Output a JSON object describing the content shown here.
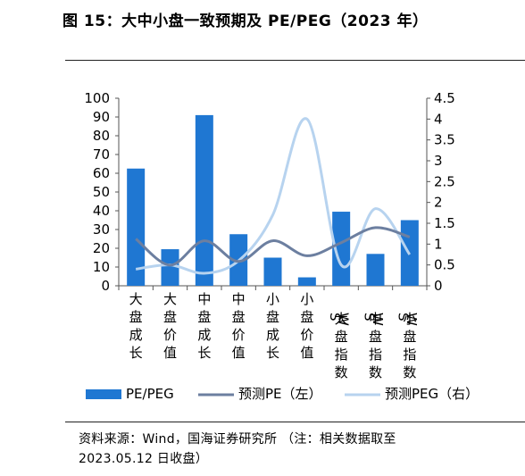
{
  "title": "图 15：大中小盘一致预期及 PE/PEG（2023 年）",
  "source_line1": "资料来源：Wind，国海证券研究所 （注：相关数据取至",
  "source_line2": "2023.05.12 日收盘）",
  "colors": {
    "bar": "#1f77d2",
    "pe_line": "#6c7fa0",
    "peg_line": "#b7d3ef"
  },
  "chart_data": {
    "type": "bar",
    "categories": [
      "大盘成长",
      "大盘价值",
      "中盘成长",
      "中盘价值",
      "小盘成长",
      "小盘价值",
      "SW大盘指数",
      "SW中盘指数",
      "SW小盘指数"
    ],
    "series": [
      {
        "name": "PE/PEG",
        "type": "bar",
        "axis": "left",
        "values": [
          62.5,
          19.5,
          91,
          27.5,
          15,
          4.5,
          39.5,
          17,
          35
        ]
      },
      {
        "name": "预测PE（左）",
        "type": "line",
        "smooth": true,
        "axis": "left",
        "values": [
          25,
          11,
          24,
          13,
          24,
          16,
          23,
          31,
          26
        ]
      },
      {
        "name": "预测PEG（右）",
        "type": "line",
        "smooth": true,
        "axis": "right",
        "values": [
          0.4,
          0.5,
          0.3,
          0.6,
          1.7,
          4.0,
          0.5,
          1.85,
          0.75
        ]
      }
    ],
    "y_left": {
      "min": 0,
      "max": 100,
      "ticks": [
        0,
        10,
        20,
        30,
        40,
        50,
        60,
        70,
        80,
        90,
        100
      ]
    },
    "y_right": {
      "min": 0,
      "max": 4.5,
      "ticks": [
        "0",
        "0.5",
        "1",
        "1.5",
        "2",
        "2.5",
        "3",
        "3.5",
        "4",
        "4.5"
      ]
    },
    "legend": {
      "placement": "bottom"
    },
    "grid": false
  }
}
